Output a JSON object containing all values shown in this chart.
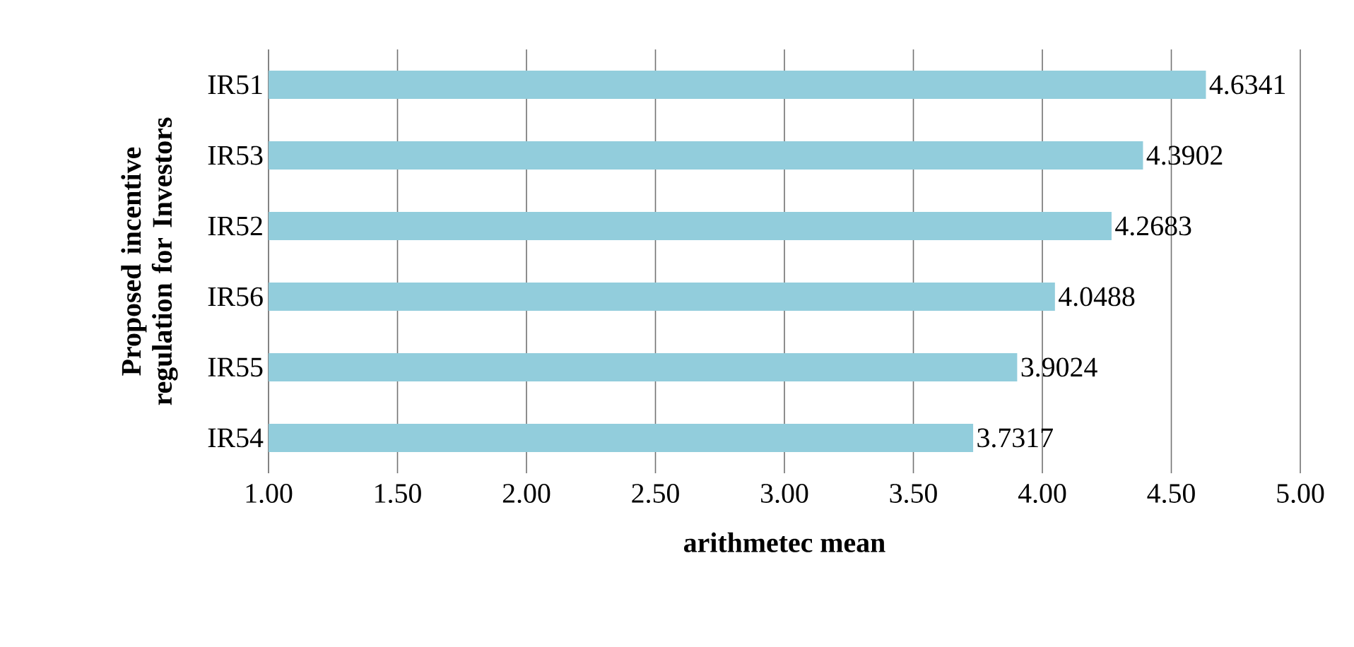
{
  "chart_data": {
    "type": "bar",
    "orientation": "horizontal",
    "xlabel": "arithmetec mean",
    "ylabel": "Proposed incentive regulation for Investors",
    "categories": [
      "IR51",
      "IR53",
      "IR52",
      "IR56",
      "IR55",
      "IR54"
    ],
    "values": [
      4.6341,
      4.3902,
      4.2683,
      4.0488,
      3.9024,
      3.7317
    ],
    "color": "#92cddc",
    "data_labels": true,
    "grid": "x",
    "xlim": [
      1,
      5
    ],
    "xticks": [
      {
        "value": 1,
        "label": "1.00"
      },
      {
        "value": 1.5,
        "label": "1.50"
      },
      {
        "value": 2,
        "label": "2.00"
      },
      {
        "value": 2.5,
        "label": "2.50"
      },
      {
        "value": 3,
        "label": "3.00"
      },
      {
        "value": 3.5,
        "label": "3.50"
      },
      {
        "value": 4,
        "label": "4.00"
      },
      {
        "value": 4.5,
        "label": "4.50"
      },
      {
        "value": 5,
        "label": "5.00"
      }
    ]
  }
}
